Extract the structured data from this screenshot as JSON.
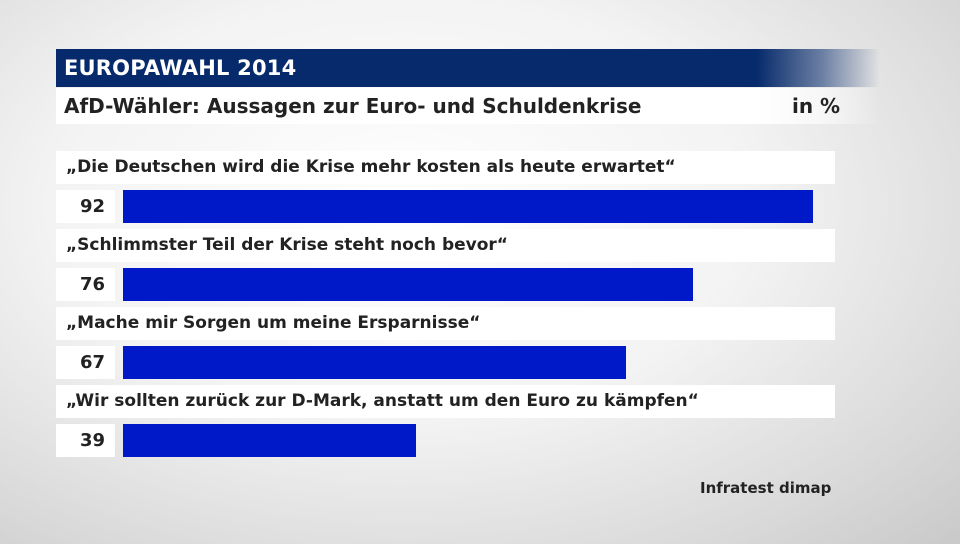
{
  "header": {
    "title": "EUROPAWAHL 2014",
    "subtitle": "AfD-Wähler: Aussagen zur Euro- und Schuldenkrise",
    "unit": "in %"
  },
  "source": "Infratest dimap",
  "colors": {
    "bar": "#0019c8",
    "header_bg": "#062a6b"
  },
  "chart_data": {
    "type": "bar",
    "orientation": "horizontal",
    "categories": [
      "„Die Deutschen wird die Krise mehr kosten als heute erwartet“",
      "„Schlimmster Teil der Krise steht noch bevor“",
      "„Mache mir Sorgen um meine Ersparnisse“",
      "„Wir sollten zurück zur D-Mark, anstatt um den Euro zu kämpfen“"
    ],
    "values": [
      92,
      76,
      67,
      39
    ],
    "xlim": [
      0,
      100
    ],
    "grid": false
  }
}
